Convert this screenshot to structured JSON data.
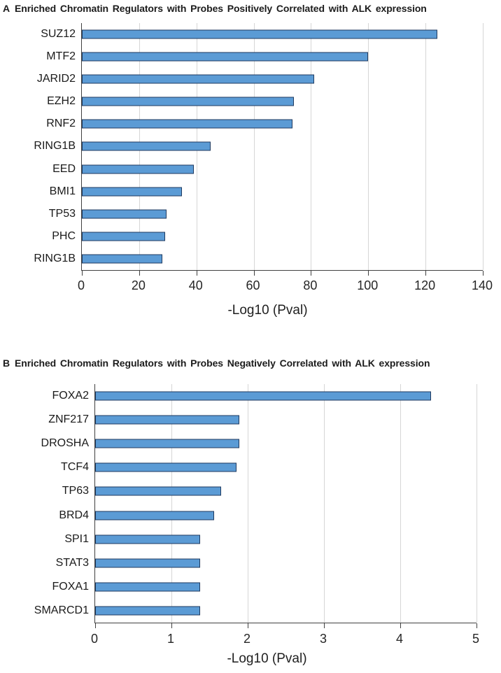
{
  "figure": {
    "background": "#ffffff",
    "text_color": "#1f1f1f",
    "axis_color": "#404040",
    "gridline_color": "#d6d6d6"
  },
  "chart_data": [
    {
      "type": "bar",
      "orientation": "horizontal",
      "panel": "A",
      "title": "Enriched Chromatin Regulators with Probes Positively Correlated with ALK expression",
      "categories": [
        "SUZ12",
        "MTF2",
        "JARID2",
        "EZH2",
        "RNF2",
        "RING1B",
        "EED",
        "BMI1",
        "TP53",
        "PHC",
        "RING1B"
      ],
      "values": [
        124,
        100,
        81,
        74,
        73.5,
        45,
        39,
        35,
        29.5,
        29,
        28
      ],
      "xlabel": "-Log10 (Pval)",
      "xlim": [
        0,
        140
      ],
      "xticks": [
        0,
        20,
        40,
        60,
        80,
        100,
        120,
        140
      ],
      "grid": true,
      "legend": null,
      "bar_color": "#5B9BD5",
      "bar_border_color": "#1F3A5F"
    },
    {
      "type": "bar",
      "orientation": "horizontal",
      "panel": "B",
      "title": "Enriched Chromatin Regulators with Probes Negatively Correlated with ALK expression",
      "categories": [
        "FOXA2",
        "ZNF217",
        "DROSHA",
        "TCF4",
        "TP63",
        "BRD4",
        "SPI1",
        "STAT3",
        "FOXA1",
        "SMARCD1"
      ],
      "values": [
        4.4,
        1.89,
        1.89,
        1.85,
        1.65,
        1.56,
        1.38,
        1.38,
        1.38,
        1.38
      ],
      "xlabel": "-Log10 (Pval)",
      "xlim": [
        0,
        5
      ],
      "xticks": [
        0,
        1,
        2,
        3,
        4,
        5
      ],
      "grid": true,
      "legend": null,
      "bar_color": "#5B9BD5",
      "bar_border_color": "#1F3A5F"
    }
  ]
}
